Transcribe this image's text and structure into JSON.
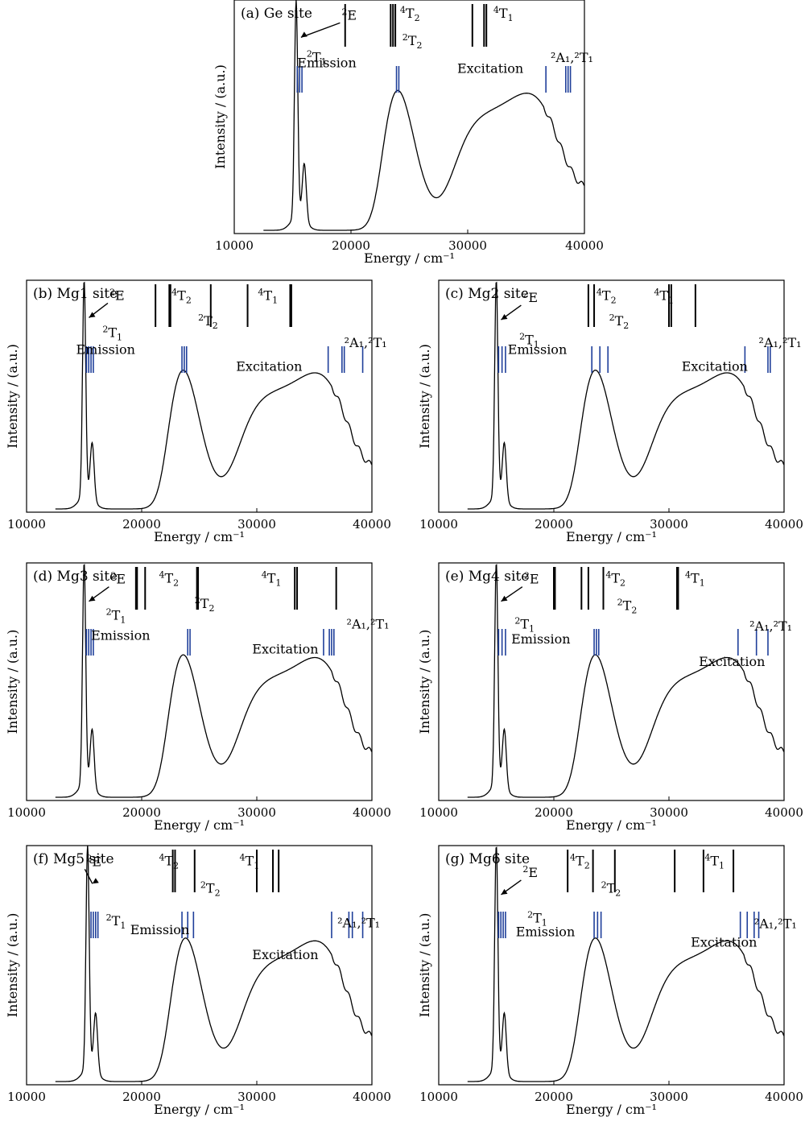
{
  "x_axis_label": "Energy / cm⁻¹",
  "y_axis_label": "Intensity / (a.u.)",
  "colors": {
    "curve": "#000000",
    "black_lines": "#000000",
    "blue_lines": "#1f3f9a",
    "frame": "#000000"
  },
  "annotations": {
    "emission": "Emission",
    "excitation": "Excitation",
    "E2": {
      "sup": "2",
      "base": "E"
    },
    "T1_2": {
      "sup": "2",
      "base": "T",
      "sub": "1"
    },
    "T2_2": {
      "sup": "2",
      "base": "T",
      "sub": "2"
    },
    "T2_4": {
      "sup": "4",
      "base": "T",
      "sub": "2"
    },
    "T1_4": {
      "sup": "4",
      "base": "T",
      "sub": "1"
    },
    "A1T1_2": "²A₁,²T₁"
  },
  "chart_data": [
    {
      "type": "line",
      "id": "a",
      "title": "(a)  Ge site",
      "xlim": [
        10000,
        40000
      ],
      "xticks": [
        10000,
        20000,
        30000,
        40000
      ],
      "emission_peak": 15300,
      "excitation_peaks": [
        23800,
        35800
      ],
      "black_lines": [
        19500,
        23400,
        23600,
        23800,
        30400,
        31400,
        31600
      ],
      "blue_lines": [
        15400,
        15600,
        15800,
        23900,
        24100,
        36700,
        38400,
        38600,
        38800
      ],
      "labels": {
        "E2": [
          19200,
          0.1
        ],
        "T2_4": [
          24200,
          0.05
        ],
        "T1_4": [
          32200,
          0.05
        ],
        "T2_2": [
          24400,
          0.82
        ],
        "T1_2": [
          16200,
          1.28
        ],
        "A1T1_2": [
          37100,
          1.3
        ],
        "emission": [
          15400,
          1.44
        ],
        "excitation": [
          29100,
          1.6
        ]
      }
    },
    {
      "type": "line",
      "id": "b",
      "title": "(b)  Mg1 site",
      "xlim": [
        10000,
        40000
      ],
      "xticks": [
        10000,
        20000,
        30000,
        40000
      ],
      "emission_peak": 15000,
      "excitation_peaks": [
        23400,
        35800
      ],
      "black_lines": [
        21200,
        22400,
        22500,
        26000,
        29200,
        32900,
        33000
      ],
      "blue_lines": [
        15200,
        15400,
        15600,
        15800,
        23500,
        23700,
        23900,
        36200,
        37400,
        37600,
        39200
      ],
      "labels": {
        "E2": [
          17200,
          0.1
        ],
        "T2_4": [
          22600,
          0.1
        ],
        "T1_4": [
          30100,
          0.1
        ],
        "T2_2": [
          24900,
          0.82
        ],
        "T1_2": [
          16600,
          1.15
        ],
        "A1T1_2": [
          37600,
          1.43
        ],
        "emission": [
          14300,
          1.63
        ],
        "excitation": [
          28200,
          2.1
        ]
      }
    },
    {
      "type": "line",
      "id": "c",
      "title": "(c)  Mg2 site",
      "xlim": [
        10000,
        40000
      ],
      "xticks": [
        10000,
        20000,
        30000,
        40000
      ],
      "emission_peak": 15000,
      "excitation_peaks": [
        23400,
        35800
      ],
      "black_lines": [
        23000,
        23500,
        30000,
        30200,
        32300
      ],
      "blue_lines": [
        15200,
        15500,
        15800,
        23300,
        24000,
        24700,
        36600,
        38600,
        38800
      ],
      "labels": {
        "E2": [
          17300,
          0.16
        ],
        "T2_4": [
          23700,
          0.1
        ],
        "T1_4": [
          28700,
          0.1
        ],
        "T2_2": [
          24800,
          0.82
        ],
        "T1_2": [
          17000,
          1.35
        ],
        "A1T1_2": [
          37800,
          1.43
        ],
        "emission": [
          16000,
          1.63
        ],
        "excitation": [
          31100,
          2.1
        ]
      }
    },
    {
      "type": "line",
      "id": "d",
      "title": "(d)  Mg3 site",
      "xlim": [
        10000,
        40000
      ],
      "xticks": [
        10000,
        20000,
        30000,
        40000
      ],
      "emission_peak": 15000,
      "excitation_peaks": [
        23400,
        35800
      ],
      "black_lines": [
        19500,
        19600,
        20300,
        24800,
        24900,
        33300,
        33500,
        36900
      ],
      "blue_lines": [
        15200,
        15400,
        15600,
        15800,
        24000,
        24200,
        35800,
        36300,
        36500,
        36700
      ],
      "labels": {
        "E2": [
          17300,
          0.13
        ],
        "T2_4": [
          21500,
          0.1
        ],
        "T1_4": [
          30400,
          0.1
        ],
        "T2_2": [
          24600,
          0.82
        ],
        "T1_2": [
          16900,
          1.15
        ],
        "A1T1_2": [
          37800,
          1.4
        ],
        "emission": [
          15600,
          1.72
        ],
        "excitation": [
          29600,
          2.1
        ]
      }
    },
    {
      "type": "line",
      "id": "e",
      "title": "(e)  Mg4 site",
      "xlim": [
        10000,
        40000
      ],
      "xticks": [
        10000,
        20000,
        30000,
        40000
      ],
      "emission_peak": 15000,
      "excitation_peaks": [
        23400,
        35800
      ],
      "black_lines": [
        20000,
        20100,
        22400,
        23000,
        24300,
        30700,
        30800
      ],
      "blue_lines": [
        15200,
        15500,
        15800,
        23500,
        23700,
        23900,
        36000,
        37600,
        38600
      ],
      "labels": {
        "E2": [
          17400,
          0.13
        ],
        "T2_4": [
          24500,
          0.1
        ],
        "T1_4": [
          31400,
          0.1
        ],
        "T2_2": [
          25500,
          0.88
        ],
        "T1_2": [
          16600,
          1.4
        ],
        "A1T1_2": [
          37000,
          1.45
        ],
        "emission": [
          16300,
          1.82
        ],
        "excitation": [
          32600,
          2.45
        ]
      }
    },
    {
      "type": "line",
      "id": "f",
      "title": "(f)  Mg5 site",
      "xlim": [
        10000,
        40000
      ],
      "xticks": [
        10000,
        20000,
        30000,
        40000
      ],
      "emission_peak": 15300,
      "excitation_peaks": [
        23600,
        35800
      ],
      "black_lines": [
        22700,
        22900,
        24600,
        30000,
        31400,
        31900
      ],
      "blue_lines": [
        15600,
        15800,
        16000,
        16200,
        23500,
        24000,
        24500,
        36500,
        38000,
        38300,
        39200
      ],
      "labels": {
        "E2": [
          15200,
          0.12
        ],
        "T2_4": [
          21500,
          0.1
        ],
        "T1_4": [
          28500,
          0.1
        ],
        "T2_2": [
          25100,
          0.88
        ],
        "T1_2": [
          16900,
          1.8
        ],
        "A1T1_2": [
          37000,
          1.85
        ],
        "emission": [
          19000,
          2.05
        ],
        "excitation": [
          29600,
          2.75
        ]
      }
    },
    {
      "type": "line",
      "id": "g",
      "title": "(g)  Mg6 site",
      "xlim": [
        10000,
        40000
      ],
      "xticks": [
        10000,
        20000,
        30000,
        40000
      ],
      "emission_peak": 15000,
      "excitation_peaks": [
        23400,
        35800
      ],
      "black_lines": [
        21200,
        23400,
        25300,
        30500,
        33000,
        35600
      ],
      "blue_lines": [
        15200,
        15400,
        15600,
        15800,
        23500,
        23800,
        24100,
        36200,
        36800,
        37400,
        37800
      ],
      "labels": {
        "E2": [
          17300,
          0.43
        ],
        "T2_4": [
          21400,
          0.1
        ],
        "T1_4": [
          33100,
          0.1
        ],
        "T2_2": [
          24100,
          0.88
        ],
        "T1_2": [
          17700,
          1.72
        ],
        "A1T1_2": [
          37400,
          1.87
        ],
        "emission": [
          16700,
          2.1
        ],
        "excitation": [
          31900,
          2.4
        ]
      }
    }
  ]
}
